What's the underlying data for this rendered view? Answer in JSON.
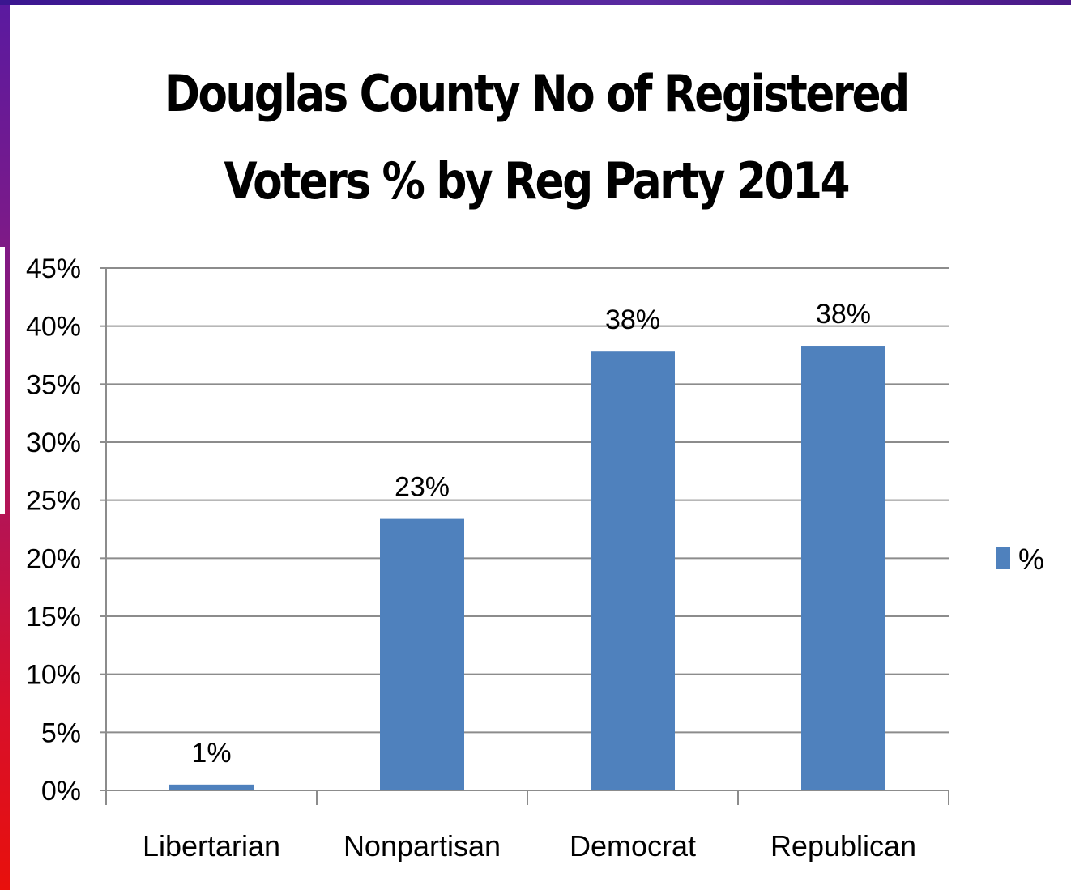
{
  "chart_data": {
    "type": "bar",
    "title": "Douglas County No of Registered Voters % by Reg Party 2014",
    "title_lines": [
      "Douglas County No of Registered",
      "Voters % by Reg Party 2014"
    ],
    "categories": [
      "Libertarian",
      "Nonpartisan",
      "Democrat",
      "Republican"
    ],
    "series": [
      {
        "name": "%",
        "values": [
          0.5,
          23.4,
          37.8,
          38.3
        ],
        "data_labels": [
          "1%",
          "23%",
          "38%",
          "38%"
        ]
      }
    ],
    "xlabel": "",
    "ylabel": "",
    "ylim": [
      0,
      45
    ],
    "yticks": [
      0,
      5,
      10,
      15,
      20,
      25,
      30,
      35,
      40,
      45
    ],
    "ytick_labels": [
      "0%",
      "5%",
      "10%",
      "15%",
      "20%",
      "25%",
      "30%",
      "35%",
      "40%",
      "45%"
    ],
    "grid": true,
    "legend_position": "right",
    "colors": {
      "bar": "#4f81bd",
      "grid": "#8c8c8c",
      "axis": "#8c8c8c"
    }
  }
}
